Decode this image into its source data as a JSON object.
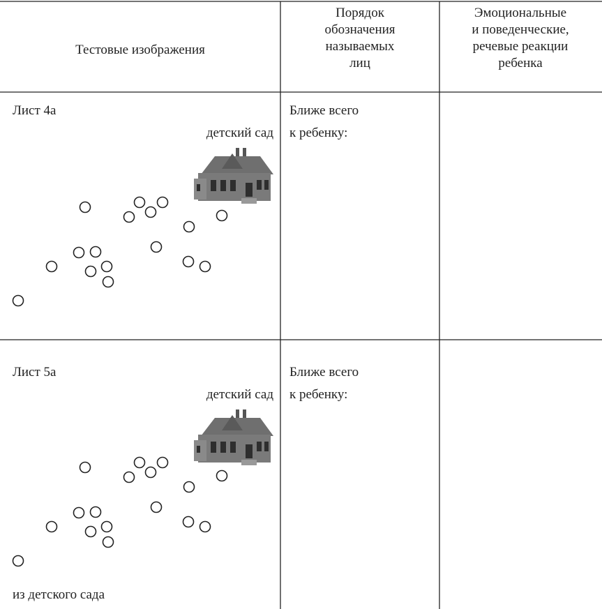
{
  "table": {
    "header": [
      [
        "Тестовые изображения"
      ],
      [
        "Порядок",
        "обозначения",
        "называемых",
        "лиц"
      ],
      [
        "Эмоциональные",
        "и поведенческие,",
        "речевые реакции",
        "ребенка"
      ]
    ],
    "rows": [
      {
        "sheet": "Лист 4а",
        "top_label": "детский сад",
        "order": [
          "Ближе всего",
          "к ребенку:"
        ]
      },
      {
        "sheet": "Лист 5а",
        "top_label": "детский сад",
        "bottom_label": "из детского сада",
        "order": [
          "Ближе всего",
          "к ребенку:"
        ]
      }
    ]
  }
}
